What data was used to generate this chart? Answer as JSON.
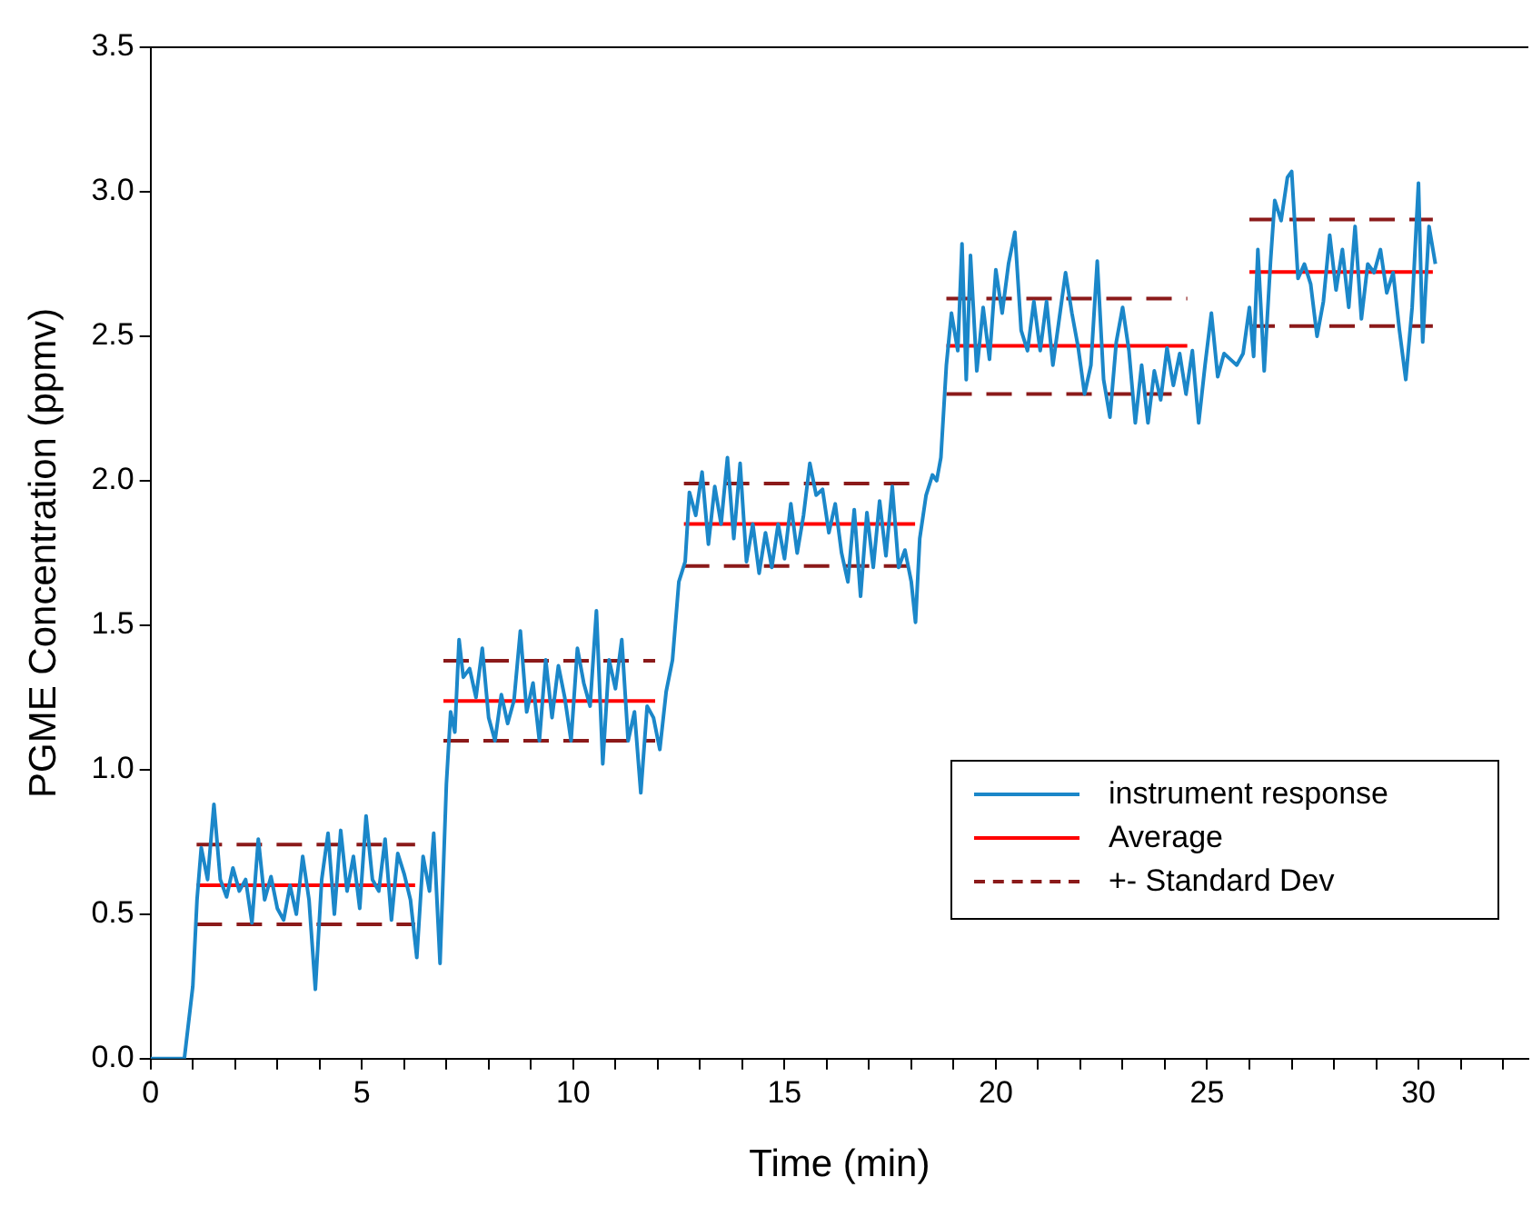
{
  "chart_data": {
    "type": "line",
    "xlabel": "Time (min)",
    "ylabel": "PGME Concentration (ppmv)",
    "xlim": [
      0,
      32.6
    ],
    "ylim": [
      0,
      3.5
    ],
    "xticks": [
      0,
      {
        "value": 1,
        "label": null
      },
      {
        "value": 2,
        "label": null
      },
      {
        "value": 3,
        "label": null
      },
      {
        "value": 4,
        "label": null
      },
      5,
      {
        "value": 6,
        "label": null
      },
      {
        "value": 7,
        "label": null
      },
      {
        "value": 8,
        "label": null
      },
      {
        "value": 9,
        "label": null
      },
      10,
      {
        "value": 11,
        "label": null
      },
      {
        "value": 12,
        "label": null
      },
      {
        "value": 13,
        "label": null
      },
      {
        "value": 14,
        "label": null
      },
      15,
      {
        "value": 16,
        "label": null
      },
      {
        "value": 17,
        "label": null
      },
      {
        "value": 18,
        "label": null
      },
      {
        "value": 19,
        "label": null
      },
      20,
      {
        "value": 21,
        "label": null
      },
      {
        "value": 22,
        "label": null
      },
      {
        "value": 23,
        "label": null
      },
      {
        "value": 24,
        "label": null
      },
      25,
      {
        "value": 26,
        "label": null
      },
      {
        "value": 27,
        "label": null
      },
      {
        "value": 28,
        "label": null
      },
      {
        "value": 29,
        "label": null
      },
      30,
      {
        "value": 31,
        "label": null
      },
      {
        "value": 32,
        "label": null
      }
    ],
    "yticks": [
      {
        "value": 0,
        "label": "0.0"
      },
      {
        "value": 0.5,
        "label": "0.5"
      },
      {
        "value": 1,
        "label": "1.0"
      },
      {
        "value": 1.5,
        "label": "1.5"
      },
      {
        "value": 2,
        "label": "2.0"
      },
      {
        "value": 2.5,
        "label": "2.5"
      },
      {
        "value": 3,
        "label": "3.0"
      },
      {
        "value": 3.5,
        "label": "3.5"
      }
    ],
    "grid": false,
    "legend": "bottom right",
    "marker": "none",
    "series": [
      {
        "name": "instrument response",
        "color": "#1b87c9",
        "line_style": "solid",
        "x": [
          0,
          0.8,
          1.0,
          1.1,
          1.2,
          1.35,
          1.5,
          1.65,
          1.8,
          1.95,
          2.1,
          2.25,
          2.4,
          2.55,
          2.7,
          2.85,
          3.0,
          3.15,
          3.3,
          3.45,
          3.6,
          3.75,
          3.9,
          4.05,
          4.2,
          4.35,
          4.5,
          4.65,
          4.8,
          4.95,
          5.1,
          5.25,
          5.4,
          5.55,
          5.7,
          5.85,
          6.0,
          6.15,
          6.3,
          6.45,
          6.6,
          6.7,
          6.85,
          7.0,
          7.1,
          7.2,
          7.3,
          7.4,
          7.55,
          7.7,
          7.85,
          8.0,
          8.15,
          8.3,
          8.45,
          8.6,
          8.75,
          8.9,
          9.05,
          9.2,
          9.35,
          9.5,
          9.65,
          9.8,
          9.95,
          10.1,
          10.25,
          10.4,
          10.55,
          10.7,
          10.85,
          11.0,
          11.15,
          11.3,
          11.45,
          11.6,
          11.75,
          11.9,
          12.05,
          12.2,
          12.35,
          12.5,
          12.65,
          12.75,
          12.9,
          13.05,
          13.2,
          13.35,
          13.5,
          13.65,
          13.8,
          13.95,
          14.1,
          14.25,
          14.4,
          14.55,
          14.7,
          14.85,
          15.0,
          15.15,
          15.3,
          15.45,
          15.6,
          15.75,
          15.9,
          16.05,
          16.2,
          16.35,
          16.5,
          16.65,
          16.8,
          16.95,
          17.1,
          17.25,
          17.4,
          17.55,
          17.7,
          17.85,
          18.0,
          18.1,
          18.2,
          18.35,
          18.5,
          18.6,
          18.7,
          18.83,
          18.95,
          19.1,
          19.2,
          19.3,
          19.4,
          19.55,
          19.7,
          19.85,
          20.0,
          20.15,
          20.3,
          20.45,
          20.6,
          20.75,
          20.9,
          21.05,
          21.2,
          21.35,
          21.5,
          21.65,
          21.8,
          21.95,
          22.1,
          22.25,
          22.4,
          22.55,
          22.7,
          22.85,
          23.0,
          23.15,
          23.3,
          23.45,
          23.6,
          23.75,
          23.9,
          24.05,
          24.2,
          24.35,
          24.5,
          24.65,
          24.8,
          24.95,
          25.1,
          25.25,
          25.4,
          25.55,
          25.7,
          25.85,
          26.0,
          26.1,
          26.2,
          26.35,
          26.5,
          26.6,
          26.75,
          26.9,
          27.0,
          27.15,
          27.3,
          27.45,
          27.6,
          27.75,
          27.9,
          28.05,
          28.2,
          28.35,
          28.5,
          28.65,
          28.8,
          28.95,
          29.1,
          29.25,
          29.4,
          29.55,
          29.7,
          29.85,
          30.0,
          30.1,
          30.25,
          30.4
        ],
        "values": [
          0,
          0,
          0.25,
          0.55,
          0.73,
          0.62,
          0.88,
          0.62,
          0.56,
          0.66,
          0.58,
          0.62,
          0.47,
          0.76,
          0.55,
          0.63,
          0.52,
          0.48,
          0.6,
          0.5,
          0.7,
          0.55,
          0.24,
          0.62,
          0.78,
          0.5,
          0.79,
          0.58,
          0.7,
          0.52,
          0.84,
          0.62,
          0.58,
          0.76,
          0.48,
          0.71,
          0.64,
          0.55,
          0.35,
          0.7,
          0.58,
          0.78,
          0.33,
          0.95,
          1.2,
          1.13,
          1.45,
          1.32,
          1.35,
          1.25,
          1.42,
          1.18,
          1.1,
          1.26,
          1.16,
          1.24,
          1.48,
          1.2,
          1.3,
          1.1,
          1.38,
          1.18,
          1.36,
          1.25,
          1.1,
          1.42,
          1.3,
          1.22,
          1.55,
          1.02,
          1.38,
          1.28,
          1.45,
          1.1,
          1.2,
          0.92,
          1.22,
          1.18,
          1.07,
          1.27,
          1.38,
          1.65,
          1.72,
          1.96,
          1.88,
          2.03,
          1.78,
          1.98,
          1.85,
          2.08,
          1.8,
          2.06,
          1.72,
          1.85,
          1.68,
          1.82,
          1.7,
          1.85,
          1.73,
          1.92,
          1.75,
          1.88,
          2.06,
          1.95,
          1.97,
          1.82,
          1.92,
          1.75,
          1.65,
          1.9,
          1.6,
          1.89,
          1.7,
          1.93,
          1.74,
          1.98,
          1.7,
          1.76,
          1.65,
          1.51,
          1.8,
          1.95,
          2.02,
          2.0,
          2.08,
          2.4,
          2.58,
          2.45,
          2.82,
          2.35,
          2.78,
          2.38,
          2.6,
          2.42,
          2.73,
          2.58,
          2.75,
          2.86,
          2.52,
          2.45,
          2.62,
          2.45,
          2.62,
          2.4,
          2.56,
          2.72,
          2.58,
          2.46,
          2.3,
          2.4,
          2.76,
          2.35,
          2.22,
          2.48,
          2.6,
          2.45,
          2.2,
          2.4,
          2.2,
          2.38,
          2.28,
          2.46,
          2.33,
          2.44,
          2.3,
          2.45,
          2.2,
          2.4,
          2.58,
          2.36,
          2.44,
          2.42,
          2.4,
          2.44,
          2.6,
          2.43,
          2.8,
          2.38,
          2.76,
          2.97,
          2.9,
          3.05,
          3.07,
          2.7,
          2.75,
          2.68,
          2.5,
          2.62,
          2.85,
          2.66,
          2.8,
          2.6,
          2.88,
          2.56,
          2.75,
          2.72,
          2.8,
          2.65,
          2.72,
          2.52,
          2.35,
          2.6,
          3.03,
          2.48,
          2.88,
          2.75
        ]
      },
      {
        "name": "Average",
        "color": "#ff0000",
        "line_style": "solid",
        "x": [
          1.09,
          6.26,
          6.6,
          6.93,
          11.94,
          12.3,
          12.62,
          18.09,
          18.5,
          18.83,
          24.53,
          25.3,
          26.0,
          30.34
        ],
        "values": [
          0.6,
          0.6,
          null,
          1.238,
          1.238,
          null,
          1.85,
          1.85,
          null,
          2.467,
          2.467,
          null,
          2.722,
          2.722
        ]
      },
      {
        "name": "+- Standard Dev",
        "color": "#8b1a1a",
        "line_style": "dashed",
        "x": [
          1.09,
          6.26,
          6.6,
          6.93,
          11.94,
          12.3,
          12.62,
          18.09,
          18.5,
          18.83,
          24.53,
          25.3,
          26.0,
          30.34
        ],
        "values": [
          0.741,
          0.741,
          null,
          1.377,
          1.377,
          null,
          1.99,
          1.99,
          null,
          2.63,
          2.63,
          null,
          2.904,
          2.904
        ]
      },
      {
        "color": "#8b1a1a",
        "line_style": "dashed",
        "x": [
          1.09,
          6.26,
          6.6,
          6.93,
          11.94,
          12.3,
          12.62,
          18.09,
          18.5,
          18.83,
          24.53,
          25.3,
          26.0,
          30.34
        ],
        "values": [
          0.465,
          0.465,
          null,
          1.1,
          1.1,
          null,
          1.705,
          1.705,
          null,
          2.3,
          2.3,
          null,
          2.535,
          2.535
        ]
      }
    ]
  }
}
